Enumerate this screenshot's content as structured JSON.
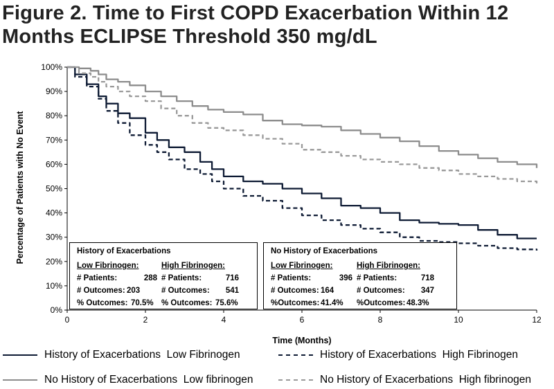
{
  "title_line1": "Figure 2. Time to First COPD Exacerbation Within 12",
  "title_line2": "Months ECLIPSE Threshold 350 mg/dL",
  "colors": {
    "dark": "#0d1a33",
    "gray": "#8c8c8c",
    "grayDash": "#999999"
  },
  "chart_data": {
    "type": "line",
    "xlabel": "Time (Months)",
    "ylabel": "Percentage of Patients with No Event",
    "xlim": [
      0,
      12
    ],
    "ylim": [
      0,
      100
    ],
    "xticks": [
      0,
      2,
      4,
      6,
      8,
      10,
      12
    ],
    "yticks": [
      0,
      10,
      20,
      30,
      40,
      50,
      60,
      70,
      80,
      90,
      100
    ],
    "ytick_labels": [
      "0%",
      "10%",
      "20%",
      "30%",
      "40%",
      "50%",
      "60%",
      "70%",
      "80%",
      "90%",
      "100%"
    ],
    "grid": false,
    "series": [
      {
        "name": "History of Exacerbations  Low Fibrinogen",
        "style": "solid",
        "color": "#0d1a33",
        "x": [
          0,
          0.2,
          0.5,
          0.8,
          1.0,
          1.3,
          1.6,
          2.0,
          2.3,
          2.6,
          3.0,
          3.4,
          3.7,
          4.0,
          4.5,
          5.0,
          5.5,
          6.0,
          6.5,
          7.0,
          7.5,
          8.0,
          8.5,
          9.0,
          9.5,
          10.0,
          10.5,
          11.0,
          11.5,
          12.0
        ],
        "y": [
          100,
          97,
          93,
          88,
          85,
          81,
          79,
          73,
          70,
          67,
          65,
          61,
          58,
          55,
          53,
          52,
          50,
          48,
          46,
          43,
          42,
          40,
          37,
          36,
          35.5,
          35,
          33,
          31,
          29.5,
          29.5
        ]
      },
      {
        "name": "History of Exacerbations  High Fibrinogen",
        "style": "dashed",
        "color": "#0d1a33",
        "x": [
          0,
          0.2,
          0.5,
          0.8,
          1.0,
          1.3,
          1.6,
          2.0,
          2.3,
          2.6,
          3.0,
          3.4,
          3.7,
          4.0,
          4.5,
          5.0,
          5.5,
          6.0,
          6.5,
          7.0,
          7.5,
          8.0,
          8.5,
          9.0,
          9.5,
          10.0,
          10.5,
          11.0,
          11.5,
          12.0
        ],
        "y": [
          100,
          96,
          92,
          87,
          82,
          77,
          72,
          68,
          65,
          62,
          58,
          56,
          53,
          50,
          47,
          45,
          42,
          39,
          37,
          35,
          33.5,
          32,
          30,
          28.5,
          28,
          27.5,
          26.5,
          25.5,
          25,
          24.5
        ]
      },
      {
        "name": "No History of Exacerbations  Low fibrinogen",
        "style": "solid",
        "color": "#8c8c8c",
        "x": [
          0,
          0.3,
          0.6,
          0.8,
          1.0,
          1.3,
          1.6,
          2.0,
          2.4,
          2.8,
          3.2,
          3.6,
          4.0,
          4.5,
          5.0,
          5.5,
          6.0,
          6.5,
          7.0,
          7.5,
          8.0,
          8.5,
          9.0,
          9.5,
          10.0,
          10.5,
          11.0,
          11.5,
          12.0
        ],
        "y": [
          100,
          99.5,
          98.5,
          97,
          95,
          94,
          92.5,
          90,
          88,
          86,
          84,
          82.5,
          81.5,
          80.5,
          78,
          76.5,
          76,
          75.5,
          74,
          72.5,
          71,
          69.5,
          67.5,
          65.5,
          64,
          62.5,
          61,
          60,
          58.5
        ]
      },
      {
        "name": "No History of Exacerbations  High fibrinogen",
        "style": "dashed",
        "color": "#999999",
        "x": [
          0,
          0.3,
          0.6,
          0.8,
          1.0,
          1.3,
          1.6,
          2.0,
          2.4,
          2.8,
          3.2,
          3.6,
          4.0,
          4.5,
          5.0,
          5.5,
          6.0,
          6.5,
          7.0,
          7.5,
          8.0,
          8.5,
          9.0,
          9.5,
          10.0,
          10.5,
          11.0,
          11.5,
          12.0
        ],
        "y": [
          100,
          97.5,
          96,
          94,
          92,
          90,
          88,
          86,
          83,
          80,
          77,
          75,
          74,
          72,
          70.5,
          68.5,
          66,
          65,
          63.5,
          62,
          61,
          60,
          58.5,
          57.5,
          56,
          55,
          54,
          53,
          52
        ]
      }
    ],
    "annotations": [
      {
        "heading": "History of Exacerbations",
        "col_headers": [
          "Low Fibrinogen:",
          "High Fibrinogen:"
        ],
        "rows": [
          {
            "l1": "# Patients:",
            "v1": "288",
            "l2": "# Patients:",
            "v2": "716"
          },
          {
            "l1": "# Outcomes:",
            "v1": "203",
            "l2": "# Outcomes:",
            "v2": "541"
          },
          {
            "l1": "% Outcomes:",
            "v1": "70.5%",
            "l2": "% Outcomes:",
            "v2": "75.6%"
          }
        ]
      },
      {
        "heading": "No History of Exacerbations",
        "col_headers": [
          "Low Fibrinogen:",
          "High Fibrinogen:"
        ],
        "rows": [
          {
            "l1": "# Patients:",
            "v1": "396",
            "l2": "# Patients:",
            "v2": "718"
          },
          {
            "l1": "# Outcomes:",
            "v1": "164",
            "l2": "# Outcomes:",
            "v2": "347"
          },
          {
            "l1": "%Outcomes:",
            "v1": "41.4%",
            "l2": "%Outcomes:",
            "v2": "48.3%"
          }
        ]
      }
    ]
  }
}
